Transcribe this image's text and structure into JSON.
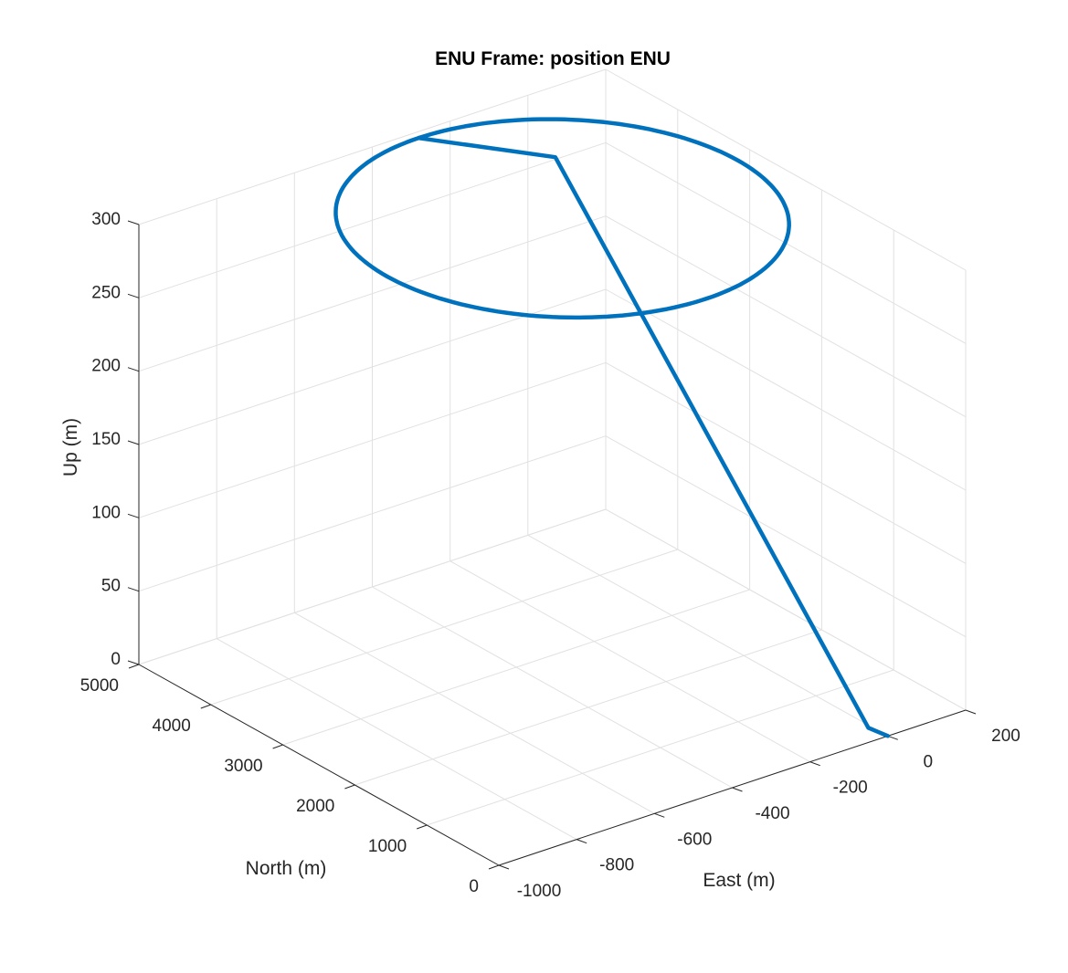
{
  "chart_data": {
    "type": "line3d",
    "title": "ENU Frame: position ENU",
    "xlabel": "East (m)",
    "ylabel": "North (m)",
    "zlabel": "Up (m)",
    "xlim": [
      -1000,
      200
    ],
    "ylim": [
      0,
      5000
    ],
    "zlim": [
      0,
      300
    ],
    "xticks": [
      -1000,
      -800,
      -600,
      -400,
      -200,
      0,
      200
    ],
    "yticks": [
      0,
      1000,
      2000,
      3000,
      4000,
      5000
    ],
    "zticks": [
      0,
      50,
      100,
      150,
      200,
      250,
      300
    ],
    "xtick_labels": [
      "-1000",
      "-800",
      "-600",
      "-400",
      "-200",
      "0",
      "200"
    ],
    "ytick_labels": [
      "0",
      "1000",
      "2000",
      "3000",
      "4000",
      "5000"
    ],
    "ztick_labels": [
      "0",
      "50",
      "100",
      "150",
      "200",
      "250",
      "300"
    ],
    "grid": true,
    "colors": {
      "line": "#0072bd",
      "grid": "#e1e1e1",
      "axis": "#262626"
    },
    "series": [
      {
        "segments": [
          {
            "kind": "line",
            "points": [
              [
                0,
                0,
                0
              ],
              [
                -50,
                0,
                10
              ],
              [
                -50,
                4350,
                280
              ],
              [
                -300,
                4900,
                300
              ]
            ]
          },
          {
            "kind": "loop",
            "center": [
              -300,
              2900,
              300
            ],
            "radius_east": 450,
            "radius_north": 2000
          }
        ]
      }
    ]
  }
}
